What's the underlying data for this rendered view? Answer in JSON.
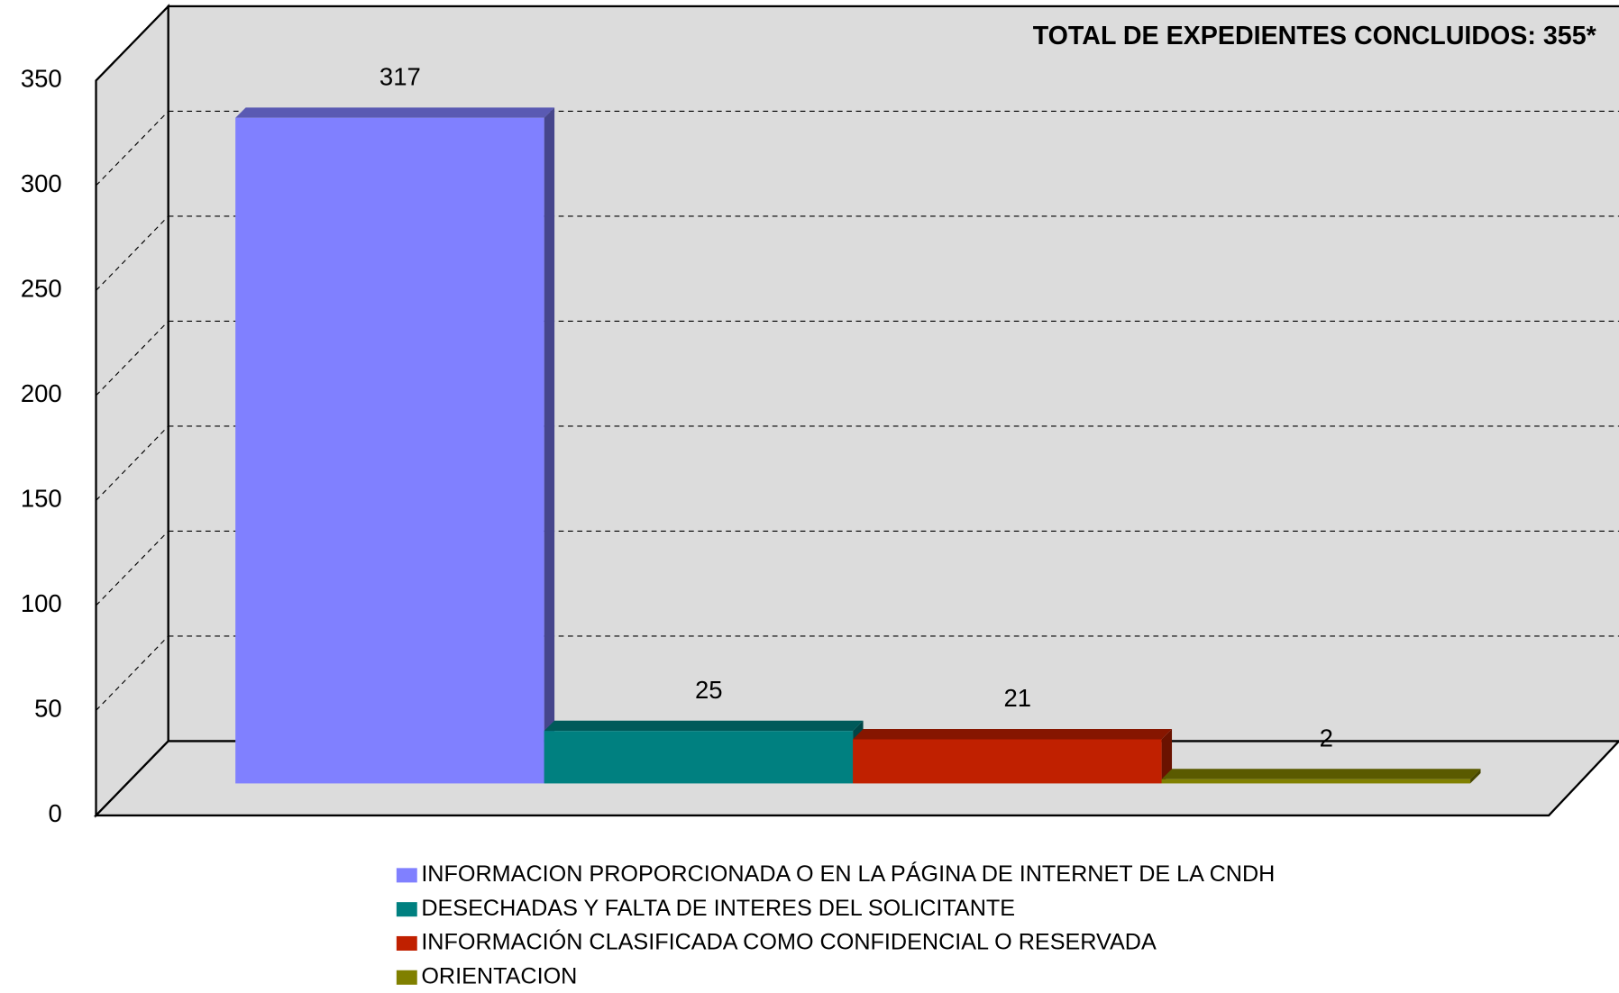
{
  "chart_data": {
    "type": "bar",
    "title": "TOTAL DE EXPEDIENTES CONCLUIDOS: 355*",
    "series": [
      {
        "name": "INFORMACION PROPORCIONADA O EN LA PÁGINA DE INTERNET DE LA CNDH",
        "color": "#8080ff",
        "values": [
          317
        ]
      },
      {
        "name": "DESECHADAS Y FALTA DE INTERES DEL SOLICITANTE",
        "color": "#008080",
        "values": [
          25
        ]
      },
      {
        "name": "INFORMACIÓN CLASIFICADA COMO CONFIDENCIAL O RESERVADA",
        "color": "#c02000",
        "values": [
          21
        ]
      },
      {
        "name": "ORIENTACION",
        "color": "#808000",
        "values": [
          2
        ]
      }
    ],
    "ylim": [
      0,
      350
    ],
    "yticks": [
      0,
      50,
      100,
      150,
      200,
      250,
      300,
      350
    ],
    "grid": true,
    "legend": "bottom"
  }
}
